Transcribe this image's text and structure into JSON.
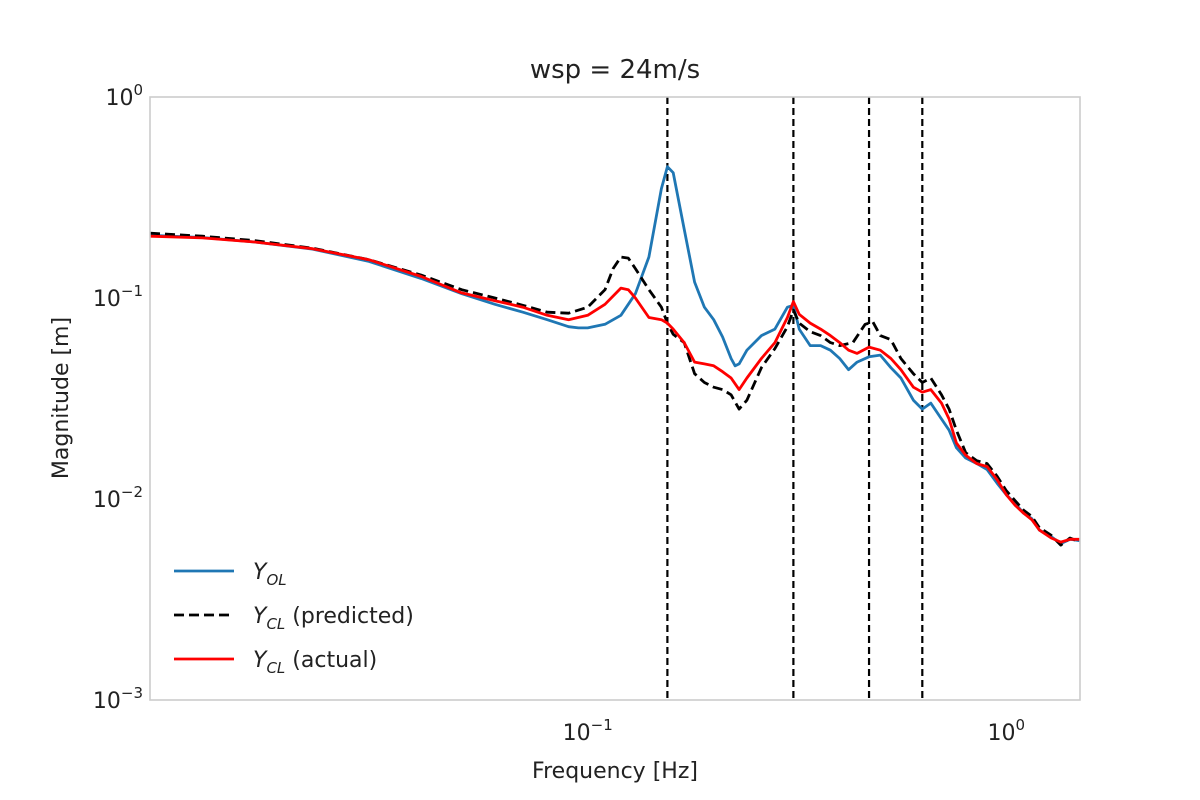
{
  "chart_data": {
    "type": "line",
    "title": "wsp = 24m/s",
    "xlabel": "Frequency [Hz]",
    "ylabel": "Magnitude [m]",
    "xscale": "log",
    "yscale": "log",
    "xlim": [
      0.009,
      1.5
    ],
    "ylim": [
      0.001,
      1
    ],
    "grid": false,
    "legend_position": "lower-left",
    "x_ticks": [
      {
        "base": "10",
        "exp": "−1",
        "value": 0.1
      },
      {
        "base": "10",
        "exp": "0",
        "value": 1
      }
    ],
    "y_ticks": [
      {
        "base": "10",
        "exp": "0",
        "value": 1
      },
      {
        "base": "10",
        "exp": "−1",
        "value": 0.1
      },
      {
        "base": "10",
        "exp": "−2",
        "value": 0.01
      },
      {
        "base": "10",
        "exp": "−3",
        "value": 0.001
      }
    ],
    "vlines": [
      0.155,
      0.31,
      0.47,
      0.63
    ],
    "vline_style": {
      "color": "#000000",
      "dash": "dashed"
    },
    "series": [
      {
        "name_main": "Y",
        "name_sub": "OL",
        "name_suffix": "",
        "color": "#1f77b4",
        "dash": "solid",
        "points": [
          [
            0.009,
            0.205
          ],
          [
            0.012,
            0.2
          ],
          [
            0.016,
            0.19
          ],
          [
            0.022,
            0.175
          ],
          [
            0.03,
            0.152
          ],
          [
            0.04,
            0.125
          ],
          [
            0.05,
            0.105
          ],
          [
            0.06,
            0.093
          ],
          [
            0.07,
            0.085
          ],
          [
            0.08,
            0.078
          ],
          [
            0.09,
            0.072
          ],
          [
            0.095,
            0.071
          ],
          [
            0.1,
            0.071
          ],
          [
            0.11,
            0.074
          ],
          [
            0.12,
            0.082
          ],
          [
            0.13,
            0.105
          ],
          [
            0.14,
            0.16
          ],
          [
            0.15,
            0.35
          ],
          [
            0.155,
            0.45
          ],
          [
            0.16,
            0.42
          ],
          [
            0.17,
            0.22
          ],
          [
            0.18,
            0.12
          ],
          [
            0.19,
            0.09
          ],
          [
            0.2,
            0.078
          ],
          [
            0.21,
            0.064
          ],
          [
            0.22,
            0.05
          ],
          [
            0.225,
            0.046
          ],
          [
            0.23,
            0.047
          ],
          [
            0.24,
            0.055
          ],
          [
            0.26,
            0.065
          ],
          [
            0.28,
            0.07
          ],
          [
            0.3,
            0.09
          ],
          [
            0.31,
            0.092
          ],
          [
            0.32,
            0.07
          ],
          [
            0.34,
            0.058
          ],
          [
            0.36,
            0.058
          ],
          [
            0.38,
            0.055
          ],
          [
            0.4,
            0.05
          ],
          [
            0.42,
            0.044
          ],
          [
            0.44,
            0.048
          ],
          [
            0.47,
            0.051
          ],
          [
            0.5,
            0.052
          ],
          [
            0.53,
            0.045
          ],
          [
            0.56,
            0.04
          ],
          [
            0.6,
            0.031
          ],
          [
            0.63,
            0.028
          ],
          [
            0.66,
            0.03
          ],
          [
            0.7,
            0.025
          ],
          [
            0.73,
            0.022
          ],
          [
            0.76,
            0.018
          ],
          [
            0.8,
            0.016
          ],
          [
            0.85,
            0.015
          ],
          [
            0.9,
            0.014
          ],
          [
            0.95,
            0.012
          ],
          [
            1.0,
            0.0105
          ],
          [
            1.05,
            0.0095
          ],
          [
            1.1,
            0.0085
          ],
          [
            1.15,
            0.008
          ],
          [
            1.2,
            0.007
          ],
          [
            1.28,
            0.0065
          ],
          [
            1.35,
            0.006
          ],
          [
            1.42,
            0.0063
          ],
          [
            1.5,
            0.0062
          ]
        ]
      },
      {
        "name_main": "Y",
        "name_sub": "CL",
        "name_suffix": " (predicted)",
        "color": "#000000",
        "dash": "dashed",
        "points": [
          [
            0.009,
            0.21
          ],
          [
            0.012,
            0.203
          ],
          [
            0.016,
            0.193
          ],
          [
            0.022,
            0.177
          ],
          [
            0.03,
            0.155
          ],
          [
            0.04,
            0.13
          ],
          [
            0.05,
            0.11
          ],
          [
            0.06,
            0.1
          ],
          [
            0.07,
            0.092
          ],
          [
            0.08,
            0.085
          ],
          [
            0.09,
            0.084
          ],
          [
            0.1,
            0.09
          ],
          [
            0.11,
            0.11
          ],
          [
            0.115,
            0.14
          ],
          [
            0.12,
            0.16
          ],
          [
            0.125,
            0.158
          ],
          [
            0.13,
            0.14
          ],
          [
            0.14,
            0.11
          ],
          [
            0.15,
            0.09
          ],
          [
            0.155,
            0.075
          ],
          [
            0.16,
            0.066
          ],
          [
            0.17,
            0.06
          ],
          [
            0.18,
            0.042
          ],
          [
            0.19,
            0.038
          ],
          [
            0.2,
            0.036
          ],
          [
            0.21,
            0.035
          ],
          [
            0.22,
            0.033
          ],
          [
            0.23,
            0.028
          ],
          [
            0.24,
            0.031
          ],
          [
            0.26,
            0.045
          ],
          [
            0.28,
            0.056
          ],
          [
            0.3,
            0.072
          ],
          [
            0.31,
            0.087
          ],
          [
            0.32,
            0.075
          ],
          [
            0.34,
            0.068
          ],
          [
            0.36,
            0.065
          ],
          [
            0.38,
            0.06
          ],
          [
            0.4,
            0.058
          ],
          [
            0.43,
            0.06
          ],
          [
            0.46,
            0.074
          ],
          [
            0.48,
            0.076
          ],
          [
            0.5,
            0.065
          ],
          [
            0.53,
            0.062
          ],
          [
            0.56,
            0.05
          ],
          [
            0.6,
            0.042
          ],
          [
            0.63,
            0.038
          ],
          [
            0.66,
            0.04
          ],
          [
            0.7,
            0.033
          ],
          [
            0.73,
            0.028
          ],
          [
            0.76,
            0.022
          ],
          [
            0.8,
            0.017
          ],
          [
            0.85,
            0.0155
          ],
          [
            0.9,
            0.015
          ],
          [
            0.95,
            0.013
          ],
          [
            1.0,
            0.011
          ],
          [
            1.05,
            0.0098
          ],
          [
            1.1,
            0.0088
          ],
          [
            1.15,
            0.0082
          ],
          [
            1.2,
            0.0072
          ],
          [
            1.28,
            0.0066
          ],
          [
            1.35,
            0.0059
          ],
          [
            1.42,
            0.0064
          ],
          [
            1.5,
            0.0061
          ]
        ]
      },
      {
        "name_main": "Y",
        "name_sub": "CL",
        "name_suffix": " (actual)",
        "color": "#ff0000",
        "dash": "solid",
        "points": [
          [
            0.009,
            0.203
          ],
          [
            0.012,
            0.199
          ],
          [
            0.016,
            0.19
          ],
          [
            0.022,
            0.176
          ],
          [
            0.03,
            0.155
          ],
          [
            0.04,
            0.128
          ],
          [
            0.05,
            0.106
          ],
          [
            0.06,
            0.097
          ],
          [
            0.07,
            0.09
          ],
          [
            0.08,
            0.082
          ],
          [
            0.09,
            0.078
          ],
          [
            0.1,
            0.082
          ],
          [
            0.11,
            0.093
          ],
          [
            0.12,
            0.112
          ],
          [
            0.125,
            0.11
          ],
          [
            0.13,
            0.1
          ],
          [
            0.14,
            0.08
          ],
          [
            0.15,
            0.078
          ],
          [
            0.155,
            0.075
          ],
          [
            0.16,
            0.07
          ],
          [
            0.17,
            0.06
          ],
          [
            0.18,
            0.048
          ],
          [
            0.19,
            0.047
          ],
          [
            0.2,
            0.046
          ],
          [
            0.21,
            0.043
          ],
          [
            0.22,
            0.04
          ],
          [
            0.23,
            0.035
          ],
          [
            0.24,
            0.04
          ],
          [
            0.26,
            0.05
          ],
          [
            0.28,
            0.06
          ],
          [
            0.3,
            0.08
          ],
          [
            0.31,
            0.096
          ],
          [
            0.32,
            0.083
          ],
          [
            0.34,
            0.075
          ],
          [
            0.36,
            0.07
          ],
          [
            0.38,
            0.065
          ],
          [
            0.4,
            0.06
          ],
          [
            0.42,
            0.055
          ],
          [
            0.44,
            0.053
          ],
          [
            0.47,
            0.057
          ],
          [
            0.5,
            0.055
          ],
          [
            0.53,
            0.05
          ],
          [
            0.56,
            0.044
          ],
          [
            0.6,
            0.036
          ],
          [
            0.63,
            0.034
          ],
          [
            0.66,
            0.035
          ],
          [
            0.7,
            0.03
          ],
          [
            0.73,
            0.025
          ],
          [
            0.76,
            0.019
          ],
          [
            0.8,
            0.0165
          ],
          [
            0.85,
            0.015
          ],
          [
            0.9,
            0.0145
          ],
          [
            0.95,
            0.0125
          ],
          [
            1.0,
            0.0105
          ],
          [
            1.05,
            0.0093
          ],
          [
            1.1,
            0.0085
          ],
          [
            1.15,
            0.0079
          ],
          [
            1.2,
            0.007
          ],
          [
            1.28,
            0.0064
          ],
          [
            1.35,
            0.0061
          ],
          [
            1.42,
            0.0063
          ],
          [
            1.5,
            0.0063
          ]
        ]
      }
    ]
  }
}
